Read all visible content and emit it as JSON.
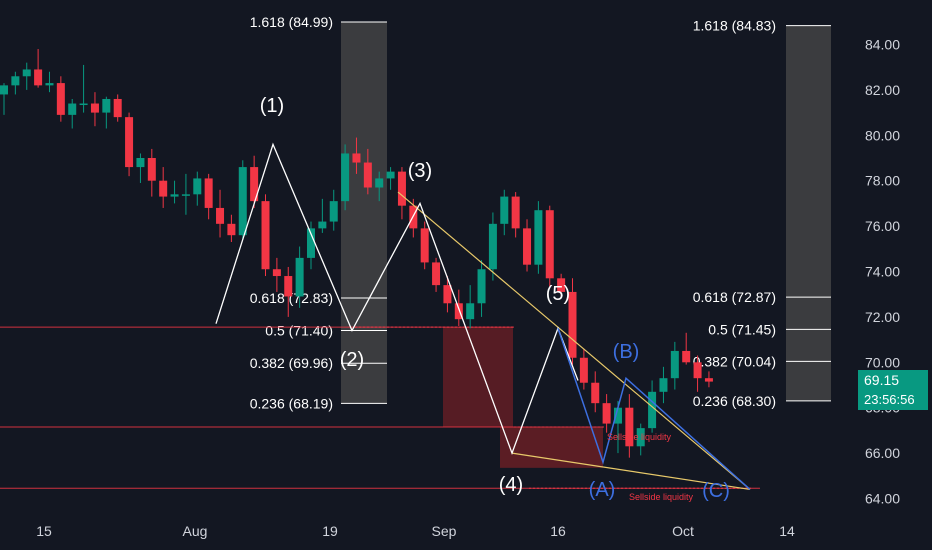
{
  "chart_data": {
    "type": "candlestick",
    "y_axis": {
      "ticks": [
        "84.00",
        "82.00",
        "80.00",
        "78.00",
        "76.00",
        "74.00",
        "72.00",
        "70.00",
        "68.00",
        "66.00",
        "64.00"
      ],
      "range": [
        63.4,
        85.6
      ]
    },
    "x_axis": {
      "ticks": [
        "15",
        "Aug",
        "19",
        "Sep",
        "16",
        "Oct",
        "14"
      ]
    },
    "last_price": "69.15",
    "countdown": "23:56:56",
    "candles": [
      {
        "o": 81.8,
        "h": 82.3,
        "l": 80.9,
        "c": 82.2
      },
      {
        "o": 82.2,
        "h": 82.8,
        "l": 81.8,
        "c": 82.6
      },
      {
        "o": 82.6,
        "h": 83.2,
        "l": 82.0,
        "c": 82.9
      },
      {
        "o": 82.9,
        "h": 83.8,
        "l": 82.1,
        "c": 82.2
      },
      {
        "o": 82.2,
        "h": 82.8,
        "l": 81.9,
        "c": 82.3
      },
      {
        "o": 82.3,
        "h": 82.6,
        "l": 80.6,
        "c": 80.9
      },
      {
        "o": 80.9,
        "h": 81.6,
        "l": 80.3,
        "c": 81.4
      },
      {
        "o": 81.4,
        "h": 83.1,
        "l": 81.0,
        "c": 81.4
      },
      {
        "o": 81.4,
        "h": 81.9,
        "l": 80.4,
        "c": 81.0
      },
      {
        "o": 81.0,
        "h": 81.7,
        "l": 80.3,
        "c": 81.6
      },
      {
        "o": 81.6,
        "h": 81.8,
        "l": 80.6,
        "c": 80.8
      },
      {
        "o": 80.8,
        "h": 81.0,
        "l": 78.2,
        "c": 78.6
      },
      {
        "o": 78.6,
        "h": 79.2,
        "l": 77.9,
        "c": 79.0
      },
      {
        "o": 79.0,
        "h": 79.4,
        "l": 77.3,
        "c": 78.0
      },
      {
        "o": 78.0,
        "h": 78.6,
        "l": 76.8,
        "c": 77.3
      },
      {
        "o": 77.3,
        "h": 78.0,
        "l": 77.0,
        "c": 77.4
      },
      {
        "o": 77.4,
        "h": 78.3,
        "l": 76.5,
        "c": 77.4
      },
      {
        "o": 77.4,
        "h": 78.4,
        "l": 76.9,
        "c": 78.1
      },
      {
        "o": 78.1,
        "h": 78.3,
        "l": 76.3,
        "c": 76.8
      },
      {
        "o": 76.8,
        "h": 77.6,
        "l": 75.5,
        "c": 76.1
      },
      {
        "o": 76.1,
        "h": 76.5,
        "l": 75.3,
        "c": 75.6
      },
      {
        "o": 75.6,
        "h": 78.9,
        "l": 75.4,
        "c": 78.6
      },
      {
        "o": 78.6,
        "h": 79.1,
        "l": 76.8,
        "c": 77.1
      },
      {
        "o": 77.1,
        "h": 77.4,
        "l": 73.8,
        "c": 74.1
      },
      {
        "o": 74.1,
        "h": 74.6,
        "l": 73.1,
        "c": 73.8
      },
      {
        "o": 73.8,
        "h": 74.2,
        "l": 72.0,
        "c": 72.9
      },
      {
        "o": 72.9,
        "h": 75.1,
        "l": 72.4,
        "c": 74.6
      },
      {
        "o": 74.6,
        "h": 76.2,
        "l": 74.1,
        "c": 75.9
      },
      {
        "o": 75.9,
        "h": 77.2,
        "l": 75.7,
        "c": 76.2
      },
      {
        "o": 76.2,
        "h": 77.6,
        "l": 75.8,
        "c": 77.1
      },
      {
        "o": 77.1,
        "h": 79.6,
        "l": 76.7,
        "c": 79.2
      },
      {
        "o": 79.2,
        "h": 79.9,
        "l": 78.3,
        "c": 78.8
      },
      {
        "o": 78.8,
        "h": 79.4,
        "l": 77.4,
        "c": 77.7
      },
      {
        "o": 77.7,
        "h": 78.4,
        "l": 77.1,
        "c": 78.1
      },
      {
        "o": 78.1,
        "h": 78.6,
        "l": 77.6,
        "c": 78.4
      },
      {
        "o": 78.4,
        "h": 78.6,
        "l": 76.3,
        "c": 76.9
      },
      {
        "o": 76.9,
        "h": 77.2,
        "l": 75.5,
        "c": 75.9
      },
      {
        "o": 75.9,
        "h": 76.2,
        "l": 74.1,
        "c": 74.4
      },
      {
        "o": 74.4,
        "h": 74.6,
        "l": 73.1,
        "c": 73.4
      },
      {
        "o": 73.4,
        "h": 73.8,
        "l": 72.2,
        "c": 72.6
      },
      {
        "o": 72.6,
        "h": 73.2,
        "l": 71.6,
        "c": 71.9
      },
      {
        "o": 71.9,
        "h": 73.4,
        "l": 71.5,
        "c": 72.6
      },
      {
        "o": 72.6,
        "h": 74.5,
        "l": 72.0,
        "c": 74.1
      },
      {
        "o": 74.1,
        "h": 76.6,
        "l": 73.6,
        "c": 76.1
      },
      {
        "o": 76.1,
        "h": 77.6,
        "l": 75.6,
        "c": 77.3
      },
      {
        "o": 77.3,
        "h": 77.5,
        "l": 75.5,
        "c": 75.9
      },
      {
        "o": 75.9,
        "h": 76.3,
        "l": 74.0,
        "c": 74.3
      },
      {
        "o": 74.3,
        "h": 77.1,
        "l": 73.9,
        "c": 76.7
      },
      {
        "o": 76.7,
        "h": 76.9,
        "l": 73.3,
        "c": 73.7
      },
      {
        "o": 73.7,
        "h": 73.9,
        "l": 72.9,
        "c": 73.1
      },
      {
        "o": 73.1,
        "h": 73.7,
        "l": 69.9,
        "c": 70.2
      },
      {
        "o": 70.2,
        "h": 70.6,
        "l": 68.8,
        "c": 69.1
      },
      {
        "o": 69.1,
        "h": 69.6,
        "l": 67.8,
        "c": 68.2
      },
      {
        "o": 68.2,
        "h": 68.6,
        "l": 66.9,
        "c": 67.3
      },
      {
        "o": 67.3,
        "h": 68.3,
        "l": 66.0,
        "c": 68.0
      },
      {
        "o": 68.0,
        "h": 68.6,
        "l": 65.8,
        "c": 66.3
      },
      {
        "o": 66.3,
        "h": 67.3,
        "l": 65.9,
        "c": 67.1
      },
      {
        "o": 67.1,
        "h": 69.2,
        "l": 66.9,
        "c": 68.7
      },
      {
        "o": 68.7,
        "h": 69.8,
        "l": 68.2,
        "c": 69.3
      },
      {
        "o": 69.3,
        "h": 70.9,
        "l": 68.8,
        "c": 70.5
      },
      {
        "o": 70.5,
        "h": 71.3,
        "l": 69.9,
        "c": 70.0
      },
      {
        "o": 70.0,
        "h": 70.3,
        "l": 68.7,
        "c": 69.3
      },
      {
        "o": 69.3,
        "h": 69.6,
        "l": 68.9,
        "c": 69.15
      }
    ],
    "fib_left": {
      "levels": [
        {
          "label": "1.618 (84.99)",
          "value": 84.99
        },
        {
          "label": "0.618 (72.83)",
          "value": 72.83
        },
        {
          "label": "0.5 (71.40)",
          "value": 71.4
        },
        {
          "label": "0.382 (69.96)",
          "value": 69.96
        },
        {
          "label": "0.236 (68.19)",
          "value": 68.19
        }
      ]
    },
    "fib_right": {
      "levels": [
        {
          "label": "1.618 (84.83)",
          "value": 84.83
        },
        {
          "label": "0.618 (72.87)",
          "value": 72.87
        },
        {
          "label": "0.5 (71.45)",
          "value": 71.45
        },
        {
          "label": "0.382 (70.04)",
          "value": 70.04
        },
        {
          "label": "0.236 (68.30)",
          "value": 68.3
        }
      ]
    },
    "wave_labels": [
      "(1)",
      "(2)",
      "(3)",
      "(4)",
      "(5)"
    ],
    "corrective_labels": [
      "(A)",
      "(B)",
      "(C)"
    ],
    "liquidity_labels": [
      "Sellside liquidity",
      "Sellside liquidity"
    ],
    "horizontal_levels": [
      71.55,
      67.15,
      64.45
    ],
    "colors": {
      "background": "#131722",
      "up": "#089981",
      "down": "#f23645",
      "impulse": "#ffffff",
      "corrective": "#3d6fe0",
      "trendline": "#e8c96a",
      "level_line": "#f23645",
      "fib_box": "#4a4a4a",
      "zone": "#6e1f25",
      "axis_text": "#d1d4dc"
    }
  }
}
